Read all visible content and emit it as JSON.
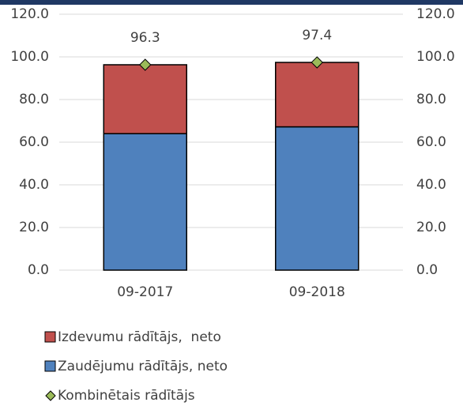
{
  "chart_data": {
    "type": "bar",
    "stacked": true,
    "categories": [
      "09-2017",
      "09-2018"
    ],
    "series": [
      {
        "name": "Izdevumu rādītājs,  neto",
        "color": "#c0504d",
        "values": [
          32.3,
          30.2
        ]
      },
      {
        "name": "Zaudējumu rādītājs, neto",
        "color": "#4f81bd",
        "values": [
          64.0,
          67.2
        ]
      },
      {
        "name": "Kombinētais rādītājs",
        "color": "#9bbb59",
        "type": "marker",
        "axis": "y2",
        "values": [
          96.3,
          97.4
        ],
        "value_labels": [
          "96.3",
          "97.4"
        ]
      }
    ],
    "ylim": [
      0,
      120
    ],
    "yticks": [
      {
        "value": 0,
        "label": "0.0"
      },
      {
        "value": 20,
        "label": "20.0"
      },
      {
        "value": 40,
        "label": "40.0"
      },
      {
        "value": 60,
        "label": "60.0"
      },
      {
        "value": 80,
        "label": "80.0"
      },
      {
        "value": 100,
        "label": "100.0"
      },
      {
        "value": 120,
        "label": "120.0"
      }
    ],
    "y2lim": [
      0,
      120
    ],
    "y2ticks": [
      {
        "value": 0,
        "label": "0.0"
      },
      {
        "value": 20,
        "label": "20.0"
      },
      {
        "value": 40,
        "label": "40.0"
      },
      {
        "value": 60,
        "label": "60.0"
      },
      {
        "value": 80,
        "label": "80.0"
      },
      {
        "value": 100,
        "label": "100.0"
      },
      {
        "value": 120,
        "label": "120.0"
      }
    ],
    "grid": true,
    "legend": "bottom"
  }
}
